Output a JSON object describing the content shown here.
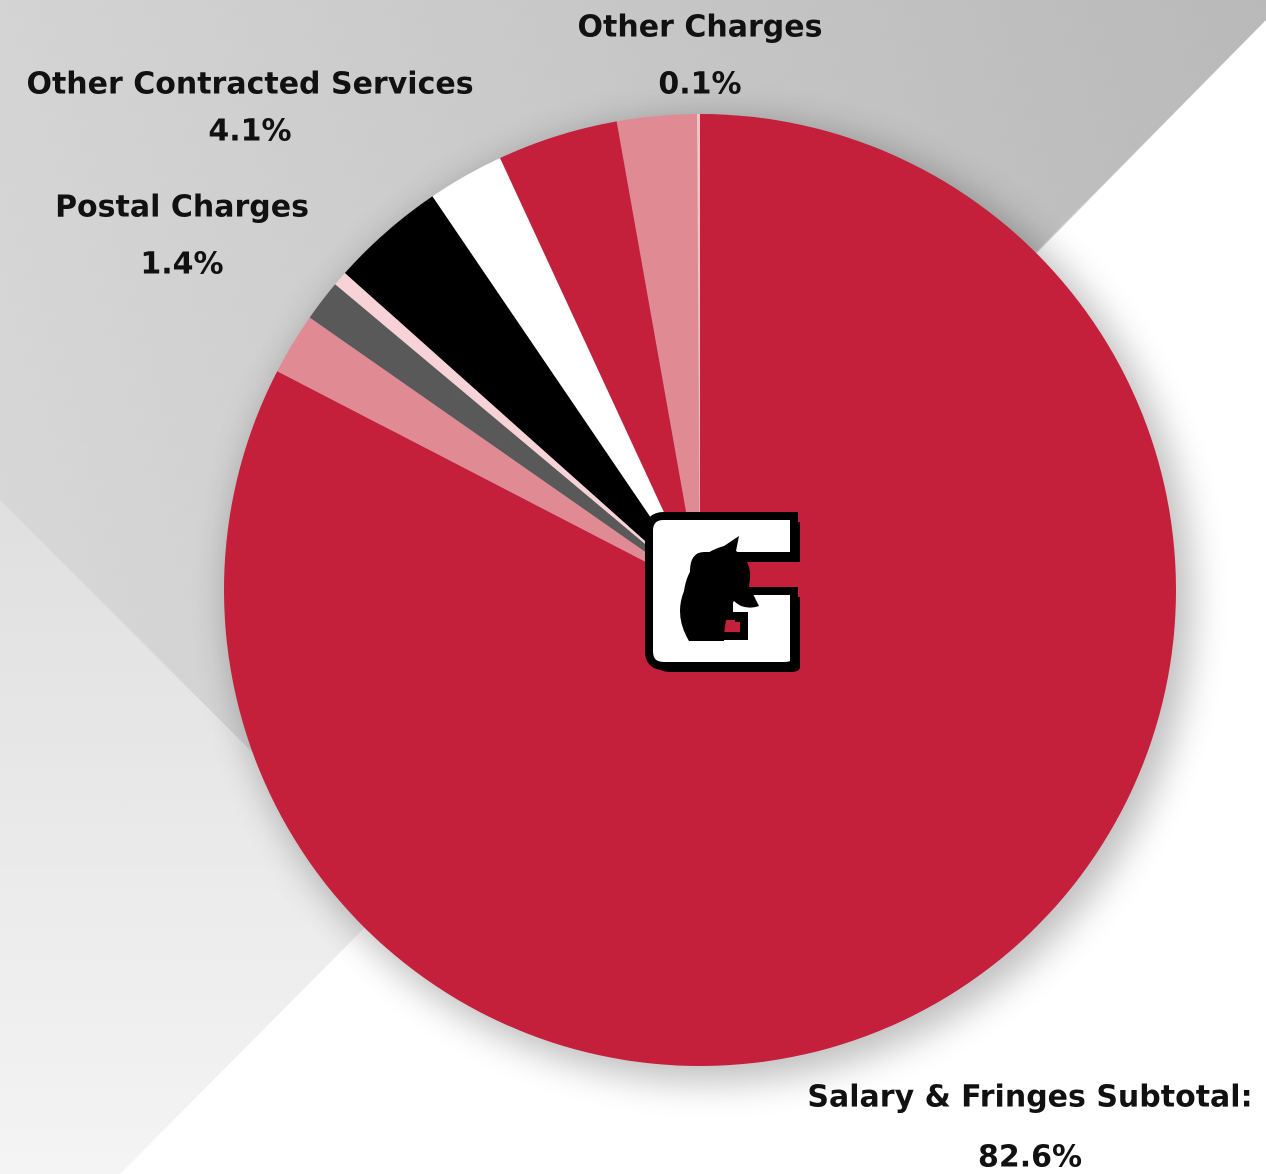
{
  "chart_data": {
    "type": "pie",
    "categories": [
      "Salary & Fringes Subtotal:",
      null,
      "Postal Charges",
      null,
      null,
      null,
      "Other Contracted Services",
      null,
      "Other Charges"
    ],
    "values": [
      82.6,
      2.1,
      1.4,
      0.5,
      3.9,
      2.6,
      4.1,
      2.7,
      0.1
    ],
    "value_labels": [
      "82.6%",
      null,
      "1.4%",
      null,
      null,
      null,
      "4.1%",
      null,
      "0.1%"
    ],
    "colors": [
      "#c41f3b",
      "#e08a94",
      "#595959",
      "#f7d3d7",
      "#000000",
      "#ffffff",
      "#c41f3b",
      "#e08a94",
      "#f2c4c8"
    ]
  }
}
